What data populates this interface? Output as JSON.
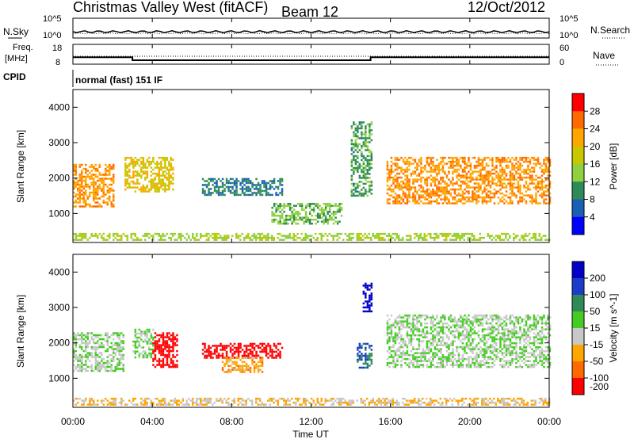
{
  "header": {
    "title": "Christmas Valley West (fitACF)",
    "beam": "Beam 12",
    "date": "12/Oct/2012"
  },
  "noise_panel": {
    "left_label": "N.Sky",
    "right_label": "N.Search",
    "left_ticks": [
      "10^5",
      "10^0"
    ],
    "right_ticks": [
      "10^5",
      "10^0"
    ]
  },
  "freq_panel": {
    "left_label_line1": "Freq.",
    "left_label_line2": "[MHz]",
    "right_label": "Nave",
    "left_ticks": [
      "18",
      "8"
    ],
    "right_ticks": [
      "60",
      "0"
    ],
    "freq_segments": [
      {
        "from_hour": 0,
        "to_hour": 3.0,
        "freq_mhz": 11.5
      },
      {
        "from_hour": 3.0,
        "to_hour": 15.0,
        "freq_mhz": 10.0
      },
      {
        "from_hour": 15.0,
        "to_hour": 24,
        "freq_mhz": 11.5
      }
    ]
  },
  "cpid": {
    "label": "CPID",
    "mode": "normal (fast) 151 IF"
  },
  "power_panel": {
    "ylabel": "Slant Range [km]",
    "colorbar_label": "Power [dB]",
    "colorbar_ticks": [
      "28",
      "24",
      "20",
      "16",
      "12",
      "8",
      "4"
    ],
    "colorbar_colors": [
      "#ff0000",
      "#ff6a00",
      "#ffa500",
      "#c8c800",
      "#90d040",
      "#2e8b57",
      "#1a5fb4",
      "#0000ff"
    ]
  },
  "velocity_panel": {
    "ylabel": "Slant Range [km]",
    "colorbar_label": "Velocity [m s^-1]",
    "colorbar_ticks": [
      "200",
      "100",
      "50",
      "15",
      "-15",
      "-50",
      "-100",
      "-200"
    ],
    "colorbar_colors": [
      "#0000c8",
      "#1a3cc8",
      "#2e8b57",
      "#44cc22",
      "#c8c8c8",
      "#ffa500",
      "#ff6a00",
      "#ff0000"
    ]
  },
  "x_axis": {
    "label": "Time UT",
    "ticks": [
      "00:00",
      "04:00",
      "08:00",
      "12:00",
      "16:00",
      "20:00",
      "00:00"
    ]
  },
  "y_axis": {
    "ticks": [
      "4000",
      "3000",
      "2000",
      "1000"
    ]
  },
  "chart_data": [
    {
      "type": "heatmap",
      "title": "Power [dB]",
      "xlabel": "Time UT",
      "ylabel": "Slant Range [km]",
      "xlim": [
        0,
        24
      ],
      "ylim": [
        180,
        4500
      ],
      "color_range": [
        0,
        30
      ],
      "regions": [
        {
          "t0": 0.0,
          "t1": 2.0,
          "r0": 1200,
          "r1": 2400,
          "value": 22
        },
        {
          "t0": 2.6,
          "t1": 5.0,
          "r0": 1600,
          "r1": 2600,
          "value": 18
        },
        {
          "t0": 6.5,
          "t1": 10.5,
          "r0": 1500,
          "r1": 2000,
          "value": 8
        },
        {
          "t0": 10.0,
          "t1": 13.5,
          "r0": 700,
          "r1": 1300,
          "value": 12
        },
        {
          "t0": 14.0,
          "t1": 15.0,
          "r0": 1500,
          "r1": 3600,
          "value": 10
        },
        {
          "t0": 15.8,
          "t1": 24.0,
          "r0": 1300,
          "r1": 2600,
          "value": 22
        },
        {
          "t0": 0.0,
          "t1": 24.0,
          "r0": 250,
          "r1": 450,
          "value": 14
        }
      ]
    },
    {
      "type": "heatmap",
      "title": "Velocity [m s^-1]",
      "xlabel": "Time UT",
      "ylabel": "Slant Range [km]",
      "xlim": [
        0,
        24
      ],
      "ylim": [
        180,
        4500
      ],
      "color_range": [
        -200,
        200
      ],
      "regions": [
        {
          "t0": 0.0,
          "t1": 2.5,
          "r0": 1200,
          "r1": 2300,
          "value": 0
        },
        {
          "t0": 3.0,
          "t1": 4.0,
          "r0": 1600,
          "r1": 2400,
          "value": 0
        },
        {
          "t0": 4.0,
          "t1": 5.2,
          "r0": 1300,
          "r1": 2300,
          "value": -200
        },
        {
          "t0": 6.5,
          "t1": 10.5,
          "r0": 1600,
          "r1": 2000,
          "value": -200
        },
        {
          "t0": 7.5,
          "t1": 9.5,
          "r0": 1200,
          "r1": 1600,
          "value": -80
        },
        {
          "t0": 14.3,
          "t1": 15.0,
          "r0": 1300,
          "r1": 2000,
          "value": 100
        },
        {
          "t0": 14.6,
          "t1": 15.0,
          "r0": 2900,
          "r1": 3700,
          "value": 200
        },
        {
          "t0": 15.8,
          "t1": 24.0,
          "r0": 1300,
          "r1": 2800,
          "value": 0
        },
        {
          "t0": 0.0,
          "t1": 24.0,
          "r0": 250,
          "r1": 450,
          "value": -50
        }
      ]
    }
  ]
}
